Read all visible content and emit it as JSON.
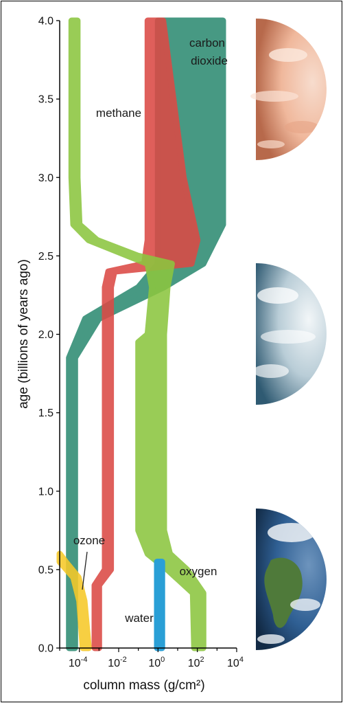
{
  "chart_data": {
    "type": "area",
    "xlabel": "column mass (g/cm²)",
    "ylabel": "age (billions of years ago)",
    "x_scale": "log10",
    "xlim": [
      1e-05,
      10000
    ],
    "ylim": [
      0,
      4
    ],
    "x_ticks": [
      {
        "base": "10",
        "exp": "-4",
        "value": 0.0001
      },
      {
        "base": "10",
        "exp": "-2",
        "value": 0.01
      },
      {
        "base": "10",
        "exp": "0",
        "value": 1
      },
      {
        "base": "10",
        "exp": "2",
        "value": 100
      },
      {
        "base": "10",
        "exp": "4",
        "value": 10000
      }
    ],
    "y_ticks": [
      "0.0",
      "0.5",
      "1.0",
      "1.5",
      "2.0",
      "2.5",
      "3.0",
      "3.5",
      "4.0"
    ],
    "grid": false,
    "series": [
      {
        "name": "carbon dioxide",
        "color": "#2e8c73",
        "band": [
          {
            "age": 4.0,
            "lo": 1.0,
            "hi": 2000
          },
          {
            "age": 2.7,
            "lo": 1.0,
            "hi": 2000
          },
          {
            "age": 2.45,
            "lo": 1.0,
            "hi": 200
          },
          {
            "age": 2.3,
            "lo": 0.1,
            "hi": 2
          },
          {
            "age": 2.1,
            "lo": 0.0002,
            "hi": 0.001
          },
          {
            "age": 1.85,
            "lo": 3e-05,
            "hi": 6e-05
          },
          {
            "age": 1.7,
            "lo": 3e-05,
            "hi": 6e-05
          },
          {
            "age": 0.0,
            "lo": 3e-05,
            "hi": 6e-05
          }
        ]
      },
      {
        "name": "methane",
        "color": "#db4a45",
        "band": [
          {
            "age": 4.0,
            "lo": 0.3,
            "hi": 1.8
          },
          {
            "age": 3.0,
            "lo": 0.3,
            "hi": 20
          },
          {
            "age": 2.6,
            "lo": 0.3,
            "hi": 100
          },
          {
            "age": 2.45,
            "lo": 0.2,
            "hi": 50
          },
          {
            "age": 2.4,
            "lo": 0.003,
            "hi": 0.006
          },
          {
            "age": 2.3,
            "lo": 0.002,
            "hi": 0.004
          },
          {
            "age": 0.5,
            "lo": 0.002,
            "hi": 0.004
          },
          {
            "age": 0.4,
            "lo": 0.0006,
            "hi": 0.001
          },
          {
            "age": 0.0,
            "lo": 0.0006,
            "hi": 0.001
          }
        ]
      },
      {
        "name": "oxygen",
        "color": "#8cc63f",
        "band": [
          {
            "age": 4.0,
            "lo": 4e-05,
            "hi": 8e-05
          },
          {
            "age": 3.0,
            "lo": 4e-05,
            "hi": 8e-05
          },
          {
            "age": 2.7,
            "lo": 5e-05,
            "hi": 0.0001
          },
          {
            "age": 2.6,
            "lo": 0.0003,
            "hi": 0.0008
          },
          {
            "age": 2.5,
            "lo": 0.03,
            "hi": 0.1
          },
          {
            "age": 2.45,
            "lo": 0.3,
            "hi": 5
          },
          {
            "age": 2.3,
            "lo": 0.5,
            "hi": 3
          },
          {
            "age": 2.0,
            "lo": 0.3,
            "hi": 2
          },
          {
            "age": 1.95,
            "lo": 0.1,
            "hi": 2
          },
          {
            "age": 0.75,
            "lo": 0.1,
            "hi": 2
          },
          {
            "age": 0.6,
            "lo": 0.3,
            "hi": 4
          },
          {
            "age": 0.5,
            "lo": 3,
            "hi": 30
          },
          {
            "age": 0.35,
            "lo": 60,
            "hi": 200
          },
          {
            "age": 0.0,
            "lo": 70,
            "hi": 200
          }
        ]
      },
      {
        "name": "water",
        "color": "#2a9fd6",
        "band": [
          {
            "age": 0.55,
            "lo": 0.9,
            "hi": 1.6
          },
          {
            "age": 0.0,
            "lo": 0.9,
            "hi": 1.6
          }
        ]
      },
      {
        "name": "ozone",
        "color": "#f7c928",
        "band": [
          {
            "age": 0.6,
            "lo": 1e-05,
            "hi": 1e-05
          },
          {
            "age": 0.55,
            "lo": 1e-05,
            "hi": 2e-05
          },
          {
            "age": 0.45,
            "lo": 5e-05,
            "hi": 9e-05
          },
          {
            "age": 0.3,
            "lo": 0.0001,
            "hi": 0.00018
          },
          {
            "age": 0.0,
            "lo": 0.00015,
            "hi": 0.0003
          }
        ]
      }
    ],
    "annotations": [
      {
        "text": "methane",
        "series": "methane"
      },
      {
        "text": "carbon",
        "series": "carbon dioxide"
      },
      {
        "text": "dioxide",
        "series": "carbon dioxide"
      },
      {
        "text": "oxygen",
        "series": "oxygen"
      },
      {
        "text": "water",
        "series": "water"
      },
      {
        "text": "ozone",
        "series": "ozone"
      }
    ]
  },
  "illustrations": [
    {
      "name": "early-earth-planet",
      "age_range": [
        3.0,
        4.0
      ],
      "colors": [
        "#f3c2a8",
        "#f6d6c8",
        "#d9896a"
      ]
    },
    {
      "name": "middle-earth-planet",
      "age_range": [
        1.5,
        2.5
      ],
      "colors": [
        "#e4eef2",
        "#9fbac8",
        "#3f6f88"
      ]
    },
    {
      "name": "modern-earth-planet",
      "age_range": [
        0.0,
        0.9
      ],
      "colors": [
        "#2f5f93",
        "#4f7a3a",
        "#e8edf2"
      ]
    }
  ]
}
